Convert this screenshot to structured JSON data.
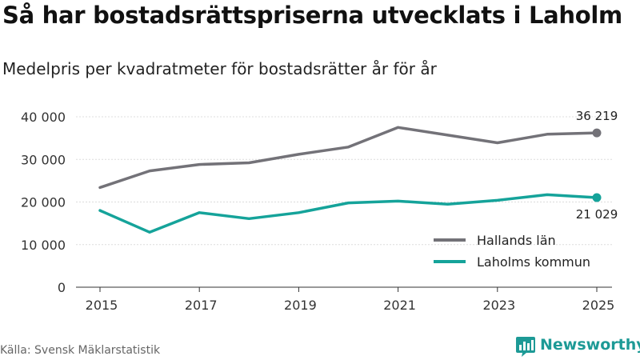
{
  "header": {
    "title": "Så har bostadsrättspriserna utvecklats i Laholm",
    "subtitle": "Medelpris per kvadratmeter för bostadsrätter år för år"
  },
  "footer": {
    "source": "Källa: Svensk Mäklarstatistik",
    "brand": "Newsworthy"
  },
  "colors": {
    "hallands": "#737278",
    "laholm": "#15a39a",
    "grid": "#dcdcdc",
    "axis": "#333333",
    "brand": "#1d9a96"
  },
  "chart_data": {
    "type": "line",
    "title": "Så har bostadsrättspriserna utvecklats i Laholm",
    "subtitle": "Medelpris per kvadratmeter för bostadsrätter år för år",
    "x": [
      2015,
      2016,
      2017,
      2018,
      2019,
      2020,
      2021,
      2022,
      2023,
      2024,
      2025
    ],
    "xticks": [
      2015,
      2017,
      2019,
      2021,
      2023,
      2025
    ],
    "xtick_labels": [
      "2015",
      "2017",
      "2019",
      "2021",
      "2023",
      "2025"
    ],
    "yticks": [
      0,
      10000,
      20000,
      30000,
      40000
    ],
    "ytick_labels": [
      "0",
      "10 000",
      "20 000",
      "30 000",
      "40 000"
    ],
    "ylim": [
      0,
      40000
    ],
    "xlim": [
      2015,
      2025
    ],
    "grid": true,
    "legend_position": "bottom-right",
    "series": [
      {
        "name": "Hallands län",
        "values": [
          23400,
          27300,
          28800,
          29200,
          31200,
          32900,
          37500,
          35700,
          33900,
          35900,
          36219
        ],
        "end_label": "36 219",
        "color_key": "hallands"
      },
      {
        "name": "Laholms kommun",
        "values": [
          18000,
          12900,
          17500,
          16100,
          17500,
          19800,
          20200,
          19500,
          20400,
          21700,
          21029
        ],
        "end_label": "21 029",
        "color_key": "laholm"
      }
    ]
  }
}
